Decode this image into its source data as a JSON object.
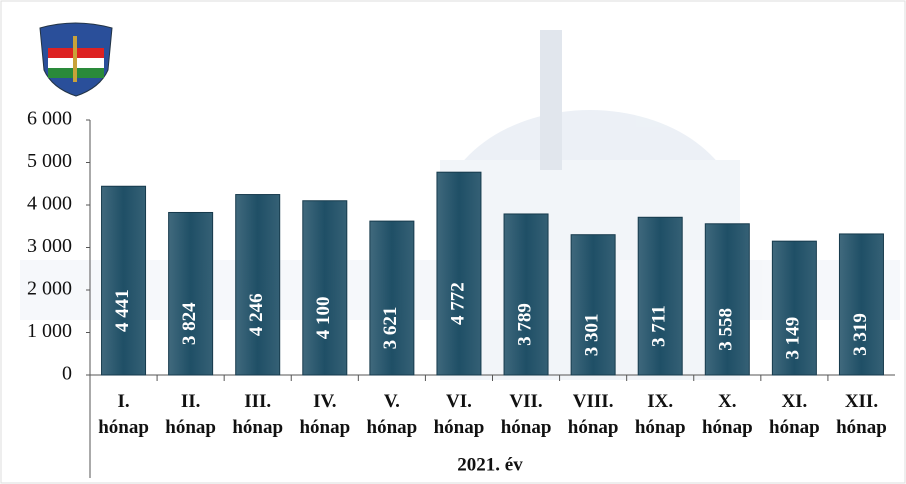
{
  "chart_data": {
    "type": "bar",
    "xlabel": "2021. év",
    "categories": [
      "I. hónap",
      "II. hónap",
      "III. hónap",
      "IV. hónap",
      "V. hónap",
      "VI. hónap",
      "VII. hónap",
      "VIII. hónap",
      "IX. hónap",
      "X. hónap",
      "XI. hónap",
      "XII. hónap"
    ],
    "values": [
      4441,
      3824,
      4246,
      4100,
      3621,
      4772,
      3789,
      3301,
      3711,
      3558,
      3149,
      3319
    ],
    "value_labels": [
      "4 441",
      "3 824",
      "4 246",
      "4 100",
      "3 621",
      "4 772",
      "3 789",
      "3 301",
      "3 711",
      "3 558",
      "3 149",
      "3 319"
    ],
    "color": "#1f4f66",
    "ylim": [
      0,
      6000
    ],
    "yticks": [
      0,
      {
        "value": 1000,
        "label": "1 000"
      },
      {
        "value": 2000,
        "label": "2 000"
      },
      {
        "value": 3000,
        "label": "3 000"
      },
      {
        "value": 4000,
        "label": "4 000"
      },
      {
        "value": 5000,
        "label": "5 000"
      },
      {
        "value": 6000,
        "label": "6 000"
      }
    ],
    "grid": false
  }
}
